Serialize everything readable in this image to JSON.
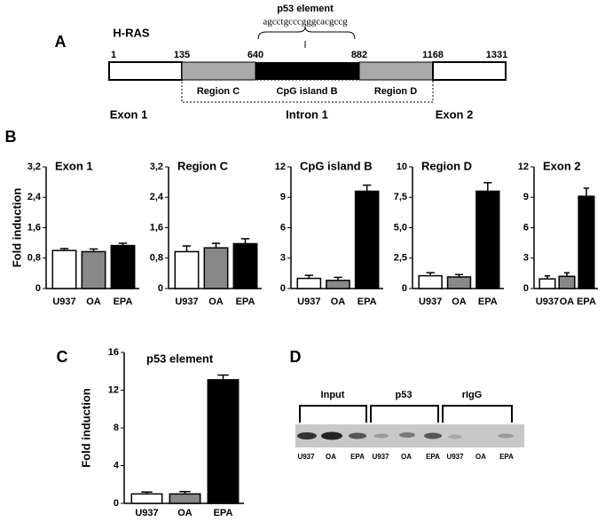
{
  "panel_a": {
    "letter": "A",
    "gene": "H-RAS",
    "motif_label": "p53 element",
    "motif_sequence": "agcctgcccgggcacgccg",
    "positions": [
      "1",
      "135",
      "640",
      "882",
      "1168",
      "1331"
    ],
    "regions": [
      "Region C",
      "CpG island B",
      "Region D"
    ],
    "parts": [
      "Exon 1",
      "Intron 1",
      "Exon 2"
    ]
  },
  "panel_b": {
    "letter": "B"
  },
  "panel_c": {
    "letter": "C"
  },
  "panel_d": {
    "letter": "D",
    "groups": [
      "Input",
      "p53",
      "rIgG"
    ],
    "lanes": [
      "U937",
      "OA",
      "EPA",
      "U937",
      "OA",
      "EPA",
      "U937",
      "OA",
      "EPA"
    ]
  },
  "chart_data": [
    {
      "type": "bar",
      "title": "Exon 1",
      "ylabel": "Fold induction",
      "categories": [
        "U937",
        "OA",
        "EPA"
      ],
      "colors": [
        "#ffffff",
        "#888888",
        "#000000"
      ],
      "values": [
        1.0,
        0.97,
        1.13
      ],
      "errors": [
        0.05,
        0.07,
        0.06
      ],
      "ylim": [
        0,
        3.2
      ],
      "yticks": [
        0,
        {
          "value": 0.8,
          "label": "0,8"
        },
        {
          "value": 1.6,
          "label": "1,6"
        },
        {
          "value": 2.4,
          "label": "2,4"
        },
        {
          "value": 3.2,
          "label": "3,2"
        }
      ]
    },
    {
      "type": "bar",
      "title": "Region C",
      "categories": [
        "U937",
        "OA",
        "EPA"
      ],
      "colors": [
        "#ffffff",
        "#888888",
        "#000000"
      ],
      "values": [
        0.97,
        1.07,
        1.18
      ],
      "errors": [
        0.15,
        0.12,
        0.13
      ],
      "ylim": [
        0,
        3.2
      ],
      "yticks": [
        0,
        {
          "value": 0.8,
          "label": "0,8"
        },
        {
          "value": 1.6,
          "label": "1,6"
        },
        {
          "value": 2.4,
          "label": "2,4"
        },
        {
          "value": 3.2,
          "label": "3,2"
        }
      ]
    },
    {
      "type": "bar",
      "title": "CpG island B",
      "categories": [
        "U937",
        "OA",
        "EPA"
      ],
      "colors": [
        "#ffffff",
        "#888888",
        "#000000"
      ],
      "values": [
        1.0,
        0.8,
        9.6
      ],
      "errors": [
        0.3,
        0.3,
        0.6
      ],
      "ylim": [
        0,
        12
      ],
      "yticks": [
        0,
        3,
        6,
        9,
        12
      ]
    },
    {
      "type": "bar",
      "title": "Region D",
      "categories": [
        "U937",
        "OA",
        "EPA"
      ],
      "colors": [
        "#ffffff",
        "#888888",
        "#000000"
      ],
      "values": [
        1.05,
        0.95,
        8.0
      ],
      "errors": [
        0.25,
        0.2,
        0.7
      ],
      "ylim": [
        0,
        10
      ],
      "yticks": [
        0,
        {
          "value": 2.5,
          "label": "2,5"
        },
        {
          "value": 5,
          "label": "5,0"
        },
        {
          "value": 7.5,
          "label": "7,5"
        },
        10
      ]
    },
    {
      "type": "bar",
      "title": "Exon 2",
      "categories": [
        "U937",
        "OA",
        "EPA"
      ],
      "colors": [
        "#ffffff",
        "#888888",
        "#000000"
      ],
      "values": [
        0.95,
        1.2,
        9.1
      ],
      "errors": [
        0.3,
        0.35,
        0.8
      ],
      "ylim": [
        0,
        12
      ],
      "yticks": [
        0,
        3,
        6,
        9,
        12
      ]
    },
    {
      "type": "bar",
      "title": "p53 element",
      "ylabel": "Fold induction",
      "categories": [
        "U937",
        "OA",
        "EPA"
      ],
      "colors": [
        "#ffffff",
        "#888888",
        "#000000"
      ],
      "values": [
        1.0,
        1.0,
        13.1
      ],
      "errors": [
        0.2,
        0.25,
        0.5
      ],
      "ylim": [
        0,
        16
      ],
      "yticks": [
        0,
        4,
        8,
        12,
        16
      ]
    }
  ]
}
